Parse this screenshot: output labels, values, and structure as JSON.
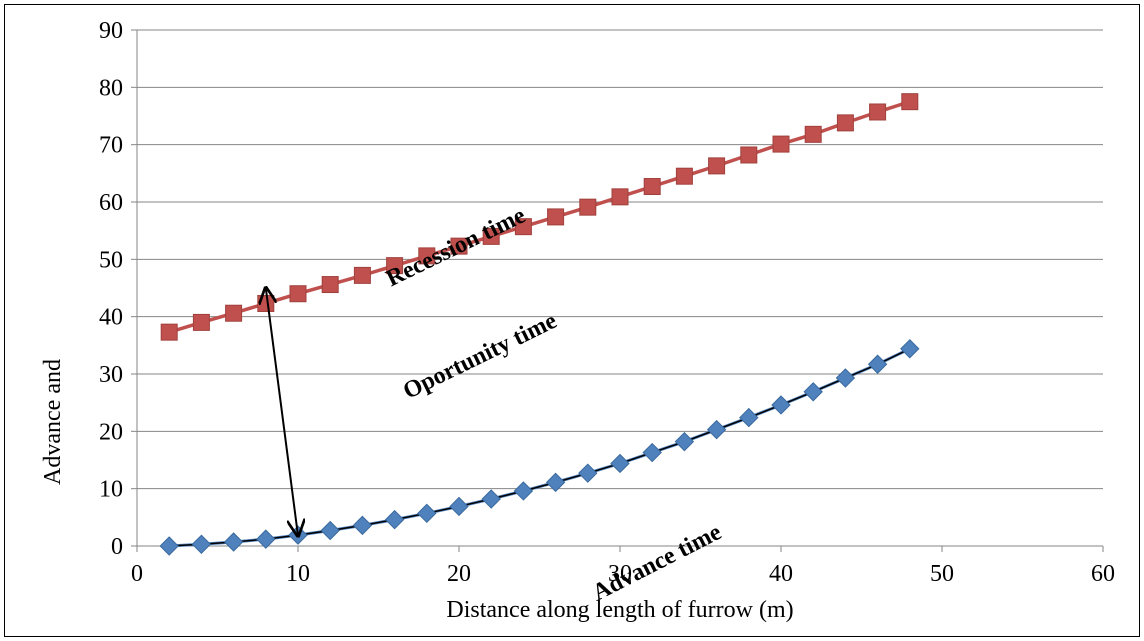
{
  "chart_data": {
    "type": "line",
    "xlabel": "Distance along  length of furrow (m)",
    "ylabel": "Advance and",
    "xlim": [
      0,
      60
    ],
    "ylim": [
      0,
      90
    ],
    "xticks": [
      0,
      10,
      20,
      30,
      40,
      50,
      60
    ],
    "yticks": [
      0,
      10,
      20,
      30,
      40,
      50,
      60,
      70,
      80,
      90
    ],
    "grid": "horizontal",
    "legend": "none",
    "series": [
      {
        "key": "recession",
        "marker": "square",
        "color": "#C0504D",
        "x": [
          2,
          4,
          6,
          8,
          10,
          12,
          14,
          16,
          18,
          20,
          22,
          24,
          26,
          28,
          30,
          32,
          34,
          36,
          38,
          40,
          42,
          44,
          46,
          48
        ],
        "y": [
          37.3,
          39,
          40.6,
          42.3,
          44,
          45.6,
          47.2,
          48.9,
          50.6,
          52.3,
          54,
          55.7,
          57.4,
          59.1,
          60.9,
          62.7,
          64.5,
          66.3,
          68.2,
          70.1,
          71.8,
          73.8,
          75.7,
          77.5
        ]
      },
      {
        "key": "advance",
        "marker": "diamond",
        "color": "#4F81BD",
        "x": [
          2,
          4,
          6,
          8,
          10,
          12,
          14,
          16,
          18,
          20,
          22,
          24,
          26,
          28,
          30,
          32,
          34,
          36,
          38,
          40,
          42,
          44,
          46,
          48
        ],
        "y": [
          0,
          0.3,
          0.7,
          1.2,
          1.9,
          2.7,
          3.6,
          4.6,
          5.7,
          6.9,
          8.2,
          9.6,
          11.1,
          12.7,
          14.4,
          16.3,
          18.2,
          20.3,
          22.4,
          24.6,
          26.9,
          29.3,
          31.7,
          34.4
        ]
      }
    ],
    "annotations": [
      {
        "text": "Recession time",
        "x": 20,
        "y": 51,
        "angle": -26
      },
      {
        "text": "Oportunity time",
        "x": 21.5,
        "y": 32,
        "angle": -26
      },
      {
        "text": "Advance time",
        "x": 32.5,
        "y": -4,
        "angle": -27
      }
    ],
    "arrow": {
      "from": [
        8,
        45
      ],
      "to": [
        10,
        1.8
      ]
    }
  }
}
